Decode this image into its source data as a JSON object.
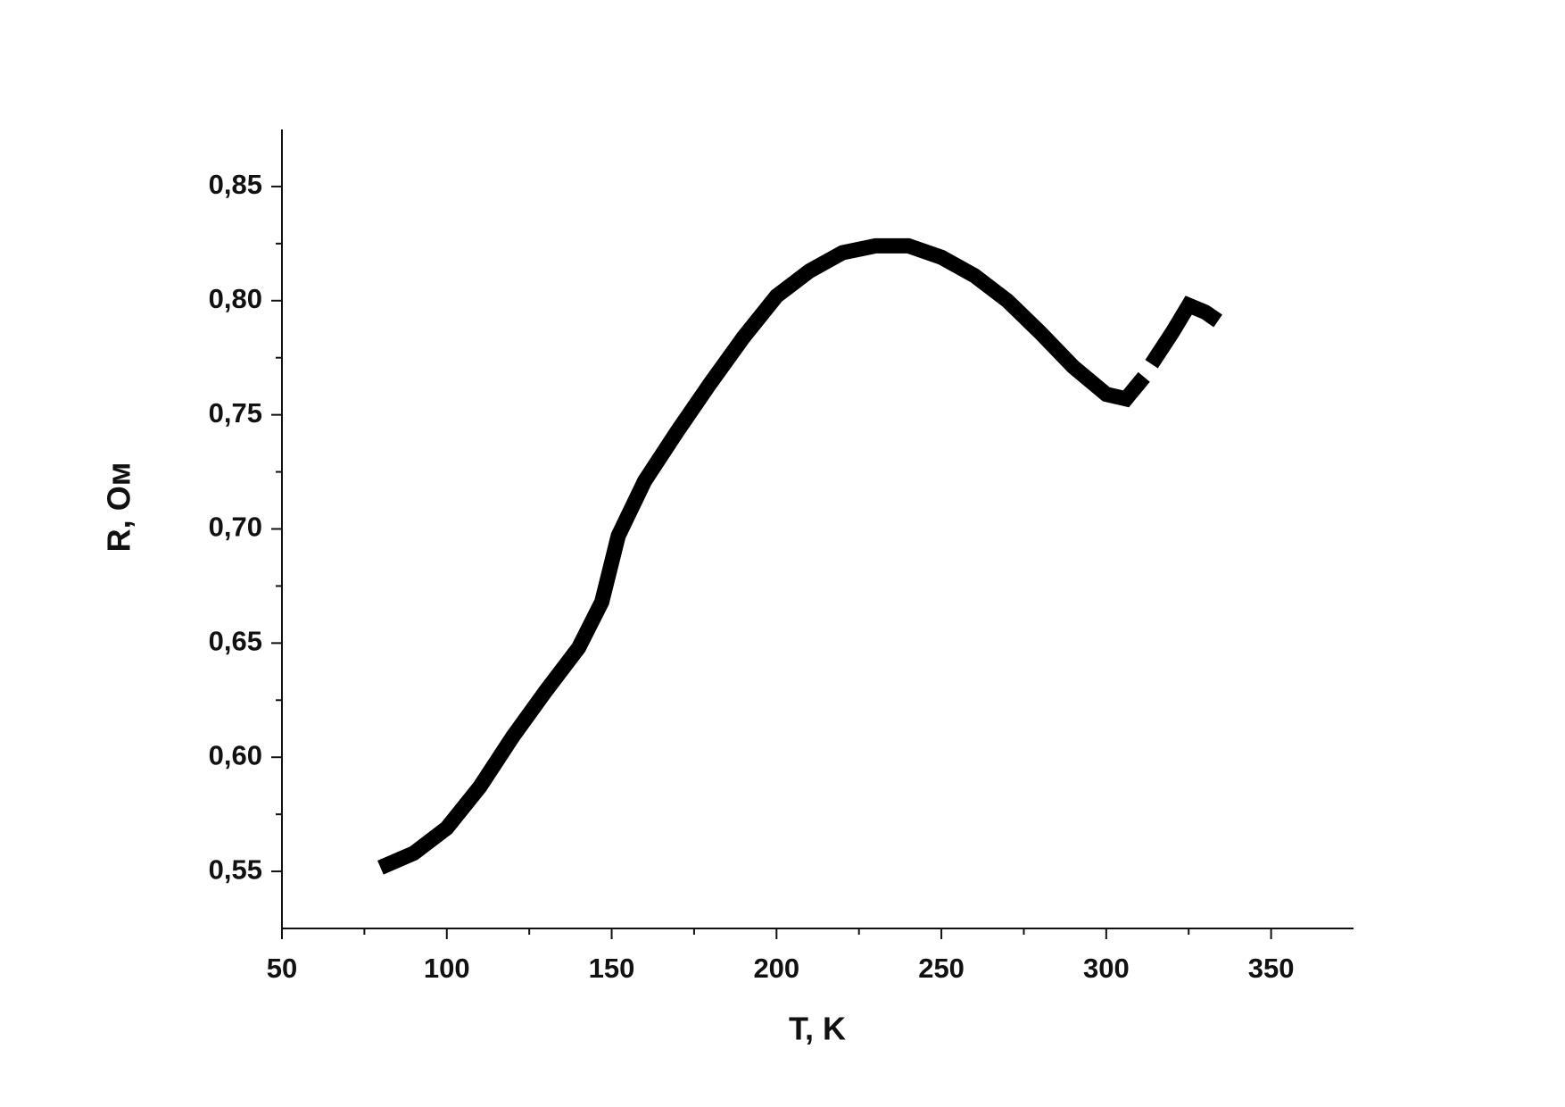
{
  "chart_data": {
    "type": "line",
    "x_label": "T, K",
    "y_label": "R, Ом",
    "x": [
      82,
      90,
      100,
      110,
      120,
      130,
      140,
      147,
      152,
      160,
      170,
      180,
      190,
      200,
      210,
      220,
      230,
      240,
      250,
      260,
      270,
      280,
      290,
      300,
      306,
      310,
      312,
      315,
      320,
      325,
      330,
      332
    ],
    "series": [
      {
        "color": "#000000",
        "values": [
          0.553,
          0.558,
          0.569,
          0.587,
          0.609,
          0.629,
          0.648,
          0.668,
          0.697,
          0.721,
          0.743,
          0.764,
          0.784,
          0.802,
          0.813,
          0.821,
          0.824,
          0.824,
          0.819,
          0.811,
          0.8,
          0.786,
          0.771,
          0.759,
          0.757,
          0.764,
          null,
          0.775,
          0.786,
          0.798,
          0.795,
          0.793
        ]
      }
    ],
    "xlim": [
      50,
      375
    ],
    "xticks": [
      50,
      100,
      150,
      200,
      250,
      300,
      350
    ],
    "ylim": [
      0.525,
      0.875
    ],
    "yticks": [
      {
        "value": 0.55,
        "label": "0,55"
      },
      {
        "value": 0.6,
        "label": "0,60"
      },
      {
        "value": 0.65,
        "label": "0,65"
      },
      {
        "value": 0.7,
        "label": "0,70"
      },
      {
        "value": 0.75,
        "label": "0,75"
      },
      {
        "value": 0.8,
        "label": "0,80"
      },
      {
        "value": 0.85,
        "label": "0,85"
      }
    ],
    "grid": false
  }
}
